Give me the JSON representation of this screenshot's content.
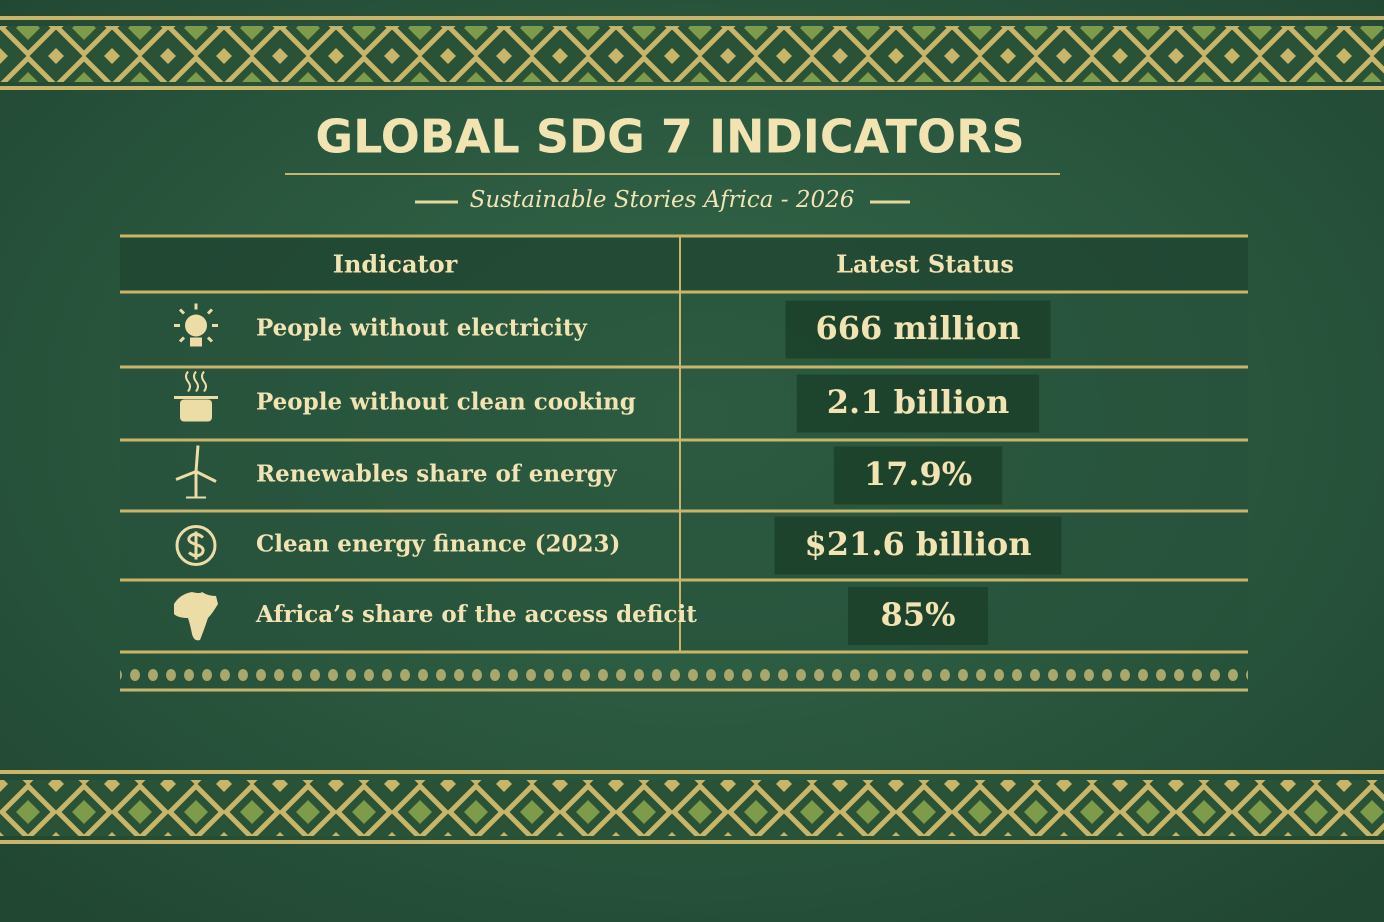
{
  "header": {
    "title": "GLOBAL SDG 7 INDICATORS",
    "subtitle": "Sustainable Stories Africa - 2026"
  },
  "table": {
    "columns": [
      "Indicator",
      "Latest Status"
    ],
    "rows": [
      [
        "People without electricity",
        "666 million"
      ],
      [
        "People without clean cooking",
        "2.1 billion"
      ],
      [
        "Renewables share of energy",
        "17.9%"
      ],
      [
        "Clean energy finance (2023)",
        "$21.6 billion"
      ],
      [
        "Africa’s share of the access deficit",
        "85%"
      ]
    ]
  }
}
